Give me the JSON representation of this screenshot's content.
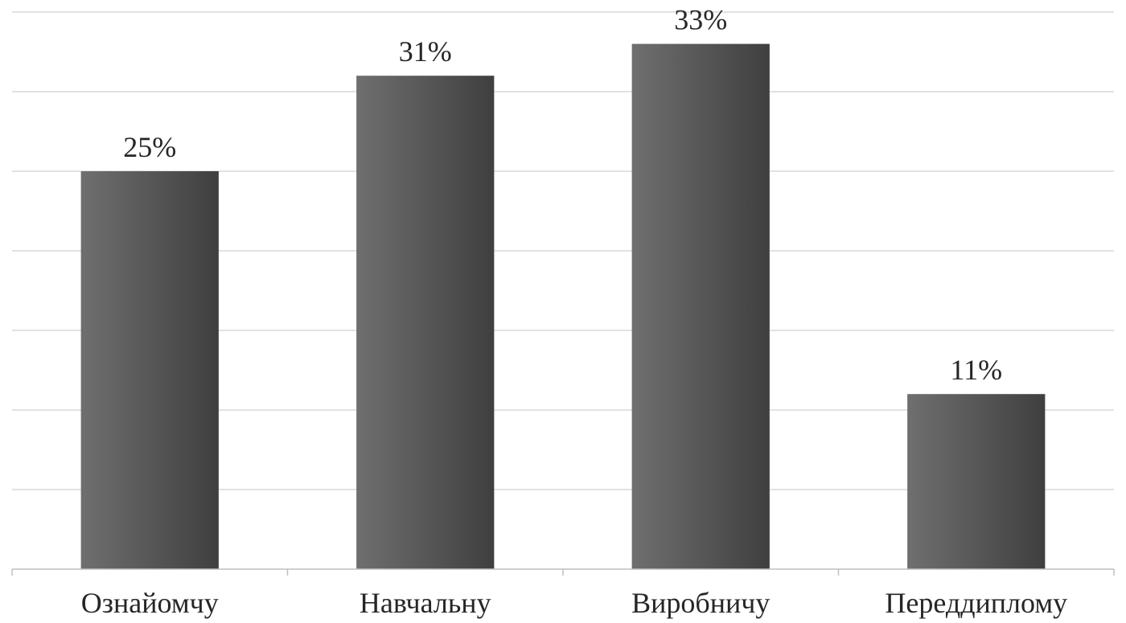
{
  "chart_data": {
    "type": "bar",
    "categories": [
      "Ознайомчу",
      "Навчальну",
      "Виробничу",
      "Переддиплому"
    ],
    "values": [
      25,
      31,
      33,
      11
    ],
    "data_labels": [
      "25%",
      "31%",
      "33%",
      "11%"
    ],
    "unit": "%",
    "title": "",
    "xlabel": "",
    "ylabel": "",
    "ylim": [
      0,
      35
    ],
    "grid": true,
    "legend": "none",
    "bar_color_light": "#6f6f6f",
    "bar_color_dark": "#3f3f3f"
  }
}
